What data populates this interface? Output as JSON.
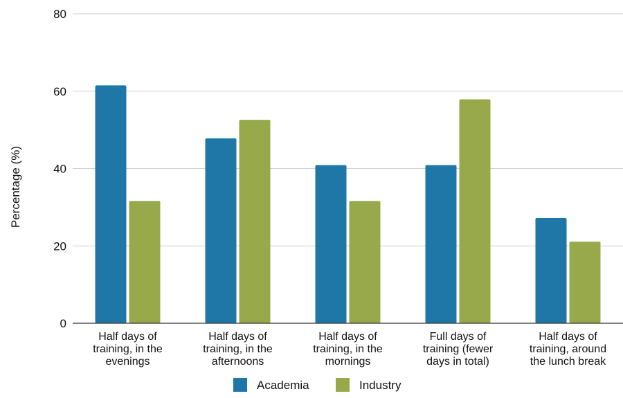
{
  "chart_data": {
    "type": "bar",
    "title": "",
    "xlabel": "",
    "ylabel": "Percentage (%)",
    "ylim": [
      0,
      80
    ],
    "yticks": [
      0,
      20,
      40,
      60,
      80
    ],
    "grid": true,
    "legend_position": "bottom",
    "categories": [
      [
        "Half days of",
        "training, in the",
        "evenings"
      ],
      [
        "Half days of",
        "training, in the",
        "afternoons"
      ],
      [
        "Half days of",
        "training, in the",
        "mornings"
      ],
      [
        "Full days of",
        "training (fewer",
        "days in total)"
      ],
      [
        "Half days of",
        "training, around",
        "the lunch break"
      ]
    ],
    "series": [
      {
        "name": "Academia",
        "color": "#1f77a8",
        "values": [
          61.5,
          47.8,
          40.9,
          40.9,
          27.2
        ]
      },
      {
        "name": "Industry",
        "color": "#97a94a",
        "values": [
          31.6,
          52.6,
          31.6,
          57.9,
          21.1
        ]
      }
    ]
  }
}
